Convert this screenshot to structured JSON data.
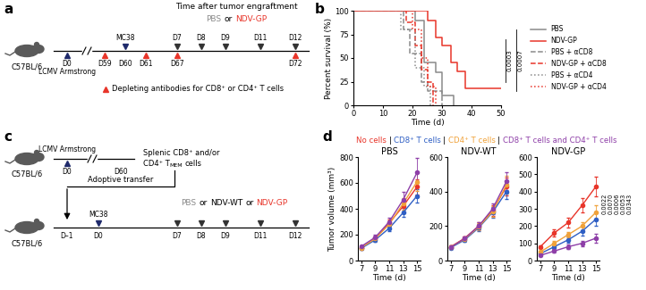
{
  "diagrams": [
    {
      "panel_label": "a",
      "mouse_label": "C57BL/6",
      "header": "Time after tumor engraftment",
      "treatments": [
        {
          "text": "PBS",
          "color": "#8a8a8a"
        },
        {
          "text": "or",
          "color": "#000000"
        },
        {
          "text": "NDV-GP",
          "color": "#e8352a"
        }
      ],
      "below": [
        {
          "label": "D0",
          "color": "#1f2a6b",
          "note": "LCMV Armstrong"
        },
        {
          "label": "D59",
          "color": "#e8352a"
        },
        {
          "label": "D60"
        },
        {
          "label": "D61",
          "color": "#e8352a"
        },
        {
          "label": "D67",
          "color": "#e8352a"
        },
        {
          "label": "D72",
          "color": "#e8352a"
        }
      ],
      "above": [
        {
          "label": "MC38",
          "color": "#1f2a6b"
        },
        {
          "label": "D7",
          "color": "#333333"
        },
        {
          "label": "D8",
          "color": "#333333"
        },
        {
          "label": "D9",
          "color": "#333333"
        },
        {
          "label": "D11",
          "color": "#333333"
        },
        {
          "label": "D12",
          "color": "#333333"
        }
      ],
      "legend": {
        "text": "Depleting antibodies for CD8⁺ or CD4⁺ T cells",
        "color": "#e8352a"
      }
    },
    {
      "panel_label": "c",
      "mouse_labels": [
        "C57BL/6",
        "C57BL/6"
      ],
      "timeline1": [
        {
          "label": "D0",
          "color": "#1f2a6b",
          "note": "LCMV Armstrong"
        },
        {
          "label": "D60"
        }
      ],
      "harvest": {
        "line1": "Splenic CD8⁺ and/or",
        "line2": "CD4⁺ T",
        "subscript": "MEM",
        "end": "cells"
      },
      "transfer": "Adoptive transfer",
      "treatments": [
        {
          "text": "PBS",
          "color": "#8a8a8a"
        },
        {
          "text": "or",
          "color": "#000000"
        },
        {
          "text": "NDV-WT",
          "color": "#000000"
        },
        {
          "text": "or",
          "color": "#000000"
        },
        {
          "text": "NDV-GP",
          "color": "#e8352a"
        }
      ],
      "above": [
        {
          "label": "MC38",
          "color": "#1f2a6b"
        }
      ],
      "timeline2": [
        {
          "label": "D–1"
        },
        {
          "label": "D0"
        },
        {
          "label": "D7",
          "color": "#333333"
        },
        {
          "label": "D8",
          "color": "#333333"
        },
        {
          "label": "D9",
          "color": "#333333"
        },
        {
          "label": "D11",
          "color": "#333333"
        },
        {
          "label": "D12",
          "color": "#333333"
        }
      ]
    }
  ],
  "chart_data": [
    {
      "panel_label": "b",
      "type": "survival",
      "xlabel": "Time (d)",
      "ylabel": "Percent survival (%)",
      "xlim": [
        0,
        50
      ],
      "xticks": [
        0,
        10,
        20,
        30,
        40,
        50
      ],
      "ylim": [
        0,
        100
      ],
      "yticks": [
        0,
        25,
        50,
        75,
        100
      ],
      "legend": "right",
      "annotations": [
        "0.0003",
        "0.0007"
      ],
      "series": [
        {
          "name": "PBS",
          "color": "#8a8a8a",
          "line_style": "solid",
          "x": [
            0,
            21,
            24,
            28,
            30,
            34
          ],
          "values": [
            100,
            90,
            45,
            35,
            10,
            0
          ]
        },
        {
          "name": "NDV-GP",
          "color": "#e8352a",
          "line_style": "solid",
          "x": [
            0,
            25,
            28,
            30,
            33,
            35,
            38,
            50
          ],
          "values": [
            100,
            90,
            72,
            63,
            45,
            36,
            18,
            18
          ]
        },
        {
          "name": "PBS + αCD8",
          "color": "#8a8a8a",
          "line_style": "dashed",
          "x": [
            0,
            17,
            19,
            23,
            25,
            30
          ],
          "values": [
            100,
            80,
            55,
            25,
            15,
            0
          ]
        },
        {
          "name": "NDV-GP + αCD8",
          "color": "#e8352a",
          "line_style": "dashed",
          "x": [
            0,
            18,
            21,
            23,
            25,
            27
          ],
          "values": [
            100,
            88,
            63,
            38,
            25,
            0
          ]
        },
        {
          "name": "PBS + αCD4",
          "color": "#8a8a8a",
          "line_style": "dotted",
          "x": [
            0,
            16,
            21,
            24,
            26
          ],
          "values": [
            100,
            80,
            40,
            20,
            0
          ]
        },
        {
          "name": "NDV-GP + αCD4",
          "color": "#e8352a",
          "line_style": "dotted",
          "x": [
            0,
            20,
            23,
            25,
            28
          ],
          "values": [
            100,
            80,
            50,
            20,
            0
          ]
        }
      ]
    },
    {
      "panel_label": "d",
      "type": "line",
      "title": "PBS",
      "xlabel": "Time (d)",
      "ylabel": "Tumor volume (mm³)",
      "legend": "top",
      "legend_separator": "|",
      "x": [
        7,
        9,
        11,
        13,
        15
      ],
      "xlim": [
        6.5,
        15.5
      ],
      "xticks": [
        7,
        9,
        11,
        13,
        15
      ],
      "ylim": [
        0,
        800
      ],
      "yticks": [
        0,
        200,
        400,
        600,
        800
      ],
      "series": [
        {
          "name": "No cells",
          "color": "#e8352a",
          "marker": "o",
          "values": [
            100,
            170,
            290,
            420,
            570
          ],
          "errors": [
            10,
            15,
            25,
            40,
            60
          ]
        },
        {
          "name": "CD8⁺ T cells",
          "color": "#2f5fc4",
          "marker": "o",
          "values": [
            95,
            160,
            250,
            370,
            500
          ],
          "errors": [
            10,
            15,
            20,
            35,
            50
          ]
        },
        {
          "name": "CD4⁺ T cells",
          "color": "#f0a23a",
          "marker": "o",
          "values": [
            100,
            170,
            280,
            440,
            610
          ],
          "errors": [
            10,
            15,
            25,
            45,
            70
          ]
        },
        {
          "name": "CD8⁺ T cells and CD4⁺ T cells",
          "color": "#8e3fa8",
          "marker": "o",
          "values": [
            110,
            180,
            300,
            470,
            680
          ],
          "errors": [
            10,
            20,
            30,
            60,
            110
          ]
        }
      ]
    },
    {
      "type": "line",
      "title": "NDV-WT",
      "xlabel": "Time (d)",
      "x": [
        7,
        9,
        11,
        13,
        15
      ],
      "xlim": [
        6.5,
        15.5
      ],
      "xticks": [
        7,
        9,
        11,
        13,
        15
      ],
      "ylim": [
        0,
        600
      ],
      "yticks": [
        0,
        200,
        400,
        600
      ],
      "series": [
        {
          "color": "#e8352a",
          "marker": "o",
          "values": [
            80,
            130,
            200,
            290,
            430
          ],
          "errors": [
            8,
            12,
            20,
            30,
            50
          ]
        },
        {
          "color": "#2f5fc4",
          "marker": "o",
          "values": [
            75,
            120,
            190,
            280,
            400
          ],
          "errors": [
            8,
            12,
            20,
            30,
            45
          ]
        },
        {
          "color": "#f0a23a",
          "marker": "o",
          "values": [
            80,
            125,
            195,
            285,
            440
          ],
          "errors": [
            8,
            12,
            20,
            30,
            50
          ]
        },
        {
          "color": "#8e3fa8",
          "marker": "o",
          "values": [
            78,
            128,
            200,
            300,
            460
          ],
          "errors": [
            8,
            12,
            20,
            30,
            50
          ]
        }
      ]
    },
    {
      "type": "line",
      "title": "NDV-GP",
      "xlabel": "Time (d)",
      "x": [
        7,
        9,
        11,
        13,
        15
      ],
      "xlim": [
        6.5,
        15.5
      ],
      "xticks": [
        7,
        9,
        11,
        13,
        15
      ],
      "ylim": [
        0,
        600
      ],
      "yticks": [
        0,
        100,
        200,
        300,
        400,
        500,
        600
      ],
      "annotations": [
        "0.0022",
        "0.0070",
        "0.0006",
        "0.0053",
        "0.0343"
      ],
      "series": [
        {
          "color": "#e8352a",
          "marker": "o",
          "values": [
            80,
            160,
            220,
            320,
            430
          ],
          "errors": [
            10,
            20,
            30,
            40,
            55
          ]
        },
        {
          "color": "#2f5fc4",
          "marker": "o",
          "values": [
            40,
            80,
            120,
            170,
            240
          ],
          "errors": [
            8,
            12,
            18,
            25,
            40
          ]
        },
        {
          "color": "#f0a23a",
          "marker": "o",
          "values": [
            50,
            100,
            150,
            200,
            280
          ],
          "errors": [
            8,
            12,
            18,
            25,
            40
          ]
        },
        {
          "color": "#8e3fa8",
          "marker": "o",
          "values": [
            30,
            55,
            80,
            100,
            130
          ],
          "errors": [
            5,
            8,
            12,
            15,
            25
          ]
        }
      ]
    }
  ]
}
